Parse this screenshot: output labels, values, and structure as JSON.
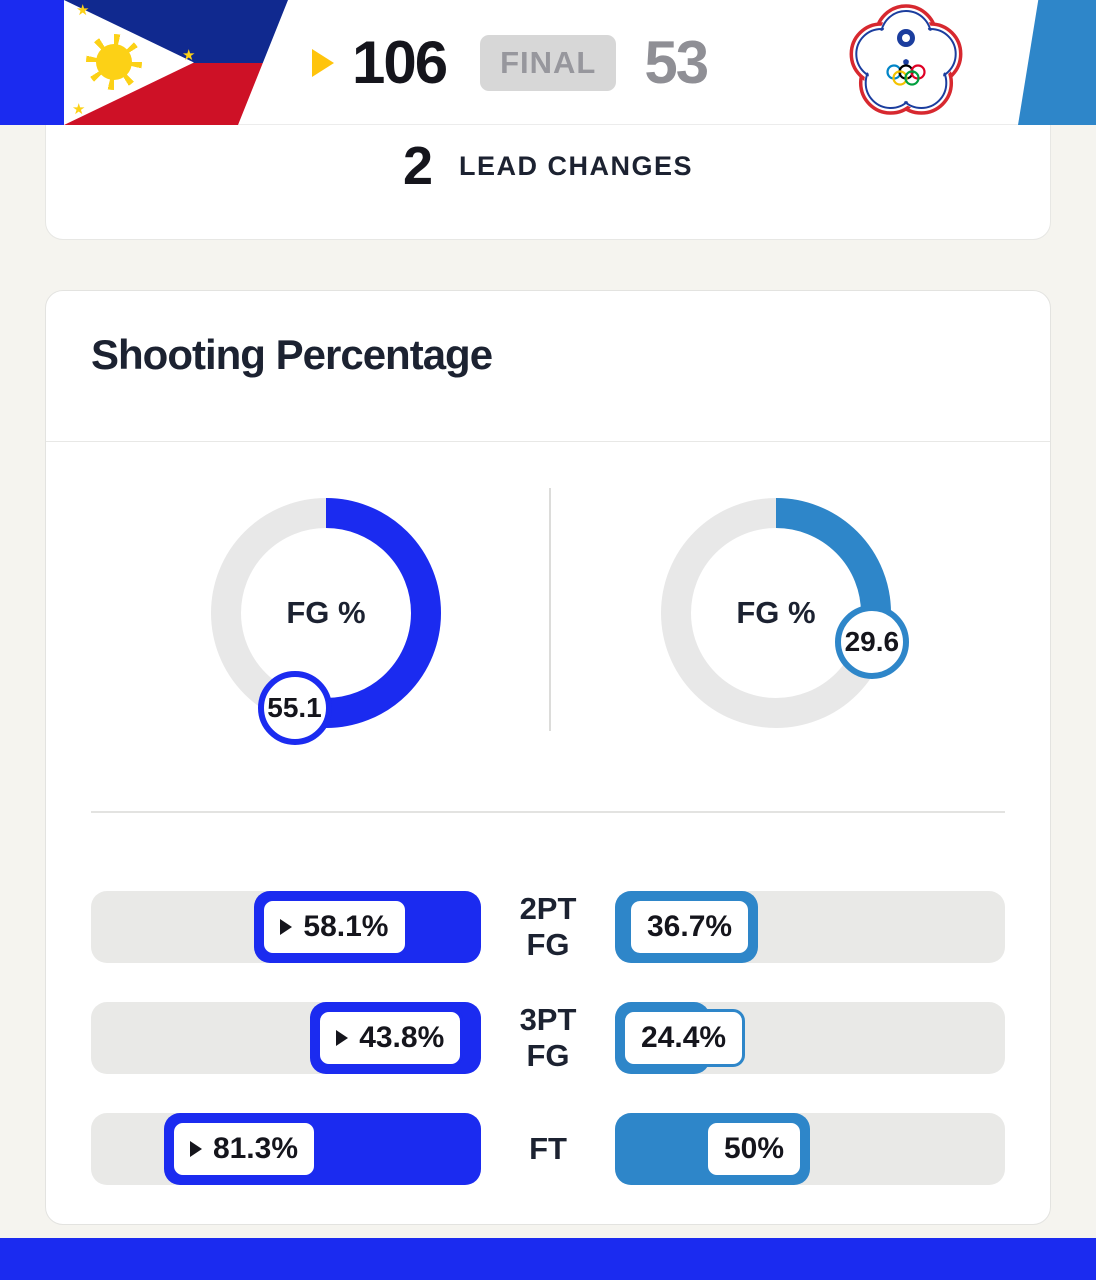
{
  "colors": {
    "home_primary": "#1b2bf0",
    "away_primary": "#2e86c9",
    "accent_yellow": "#ffc40c",
    "page_background": "#f5f4ef",
    "text_dark": "#1c2231",
    "text_muted": "#8f8f95",
    "final_badge_bg": "#d7d7d7",
    "track_gray": "#e9e9e7"
  },
  "header": {
    "home_flag": "philippines-flag",
    "away_flag": "chinese-taipei-olympic-flag",
    "home_score": "106",
    "status_label": "FINAL",
    "away_score": "53"
  },
  "lead_changes": {
    "value": "2",
    "label": "LEAD CHANGES"
  },
  "shooting": {
    "title": "Shooting Percentage"
  },
  "chart_data": [
    {
      "type": "donut",
      "team": "home",
      "label": "FG %",
      "value": 55.1,
      "badge": "55.1",
      "color": "#1b2bf0",
      "track_color": "#e8e8e8"
    },
    {
      "type": "donut",
      "team": "away",
      "label": "FG %",
      "value": 29.6,
      "badge": "29.6",
      "color": "#2e86c9",
      "track_color": "#e8e8e8"
    },
    {
      "type": "bar",
      "categories": [
        "2PT FG",
        "3PT FG",
        "FT"
      ],
      "cat_lines": [
        [
          "2PT",
          "FG"
        ],
        [
          "3PT",
          "FG"
        ],
        [
          "FT",
          ""
        ]
      ],
      "xlim": [
        0,
        100
      ],
      "series": [
        {
          "name": "home",
          "values": [
            58.1,
            43.8,
            81.3
          ],
          "labels": [
            "58.1%",
            "43.8%",
            "81.3%"
          ],
          "color": "#1b2bf0",
          "leader_arrow": true
        },
        {
          "name": "away",
          "values": [
            36.7,
            24.4,
            50
          ],
          "labels": [
            "36.7%",
            "24.4%",
            "50%"
          ],
          "color": "#2e86c9",
          "leader_arrow": false
        }
      ]
    }
  ]
}
